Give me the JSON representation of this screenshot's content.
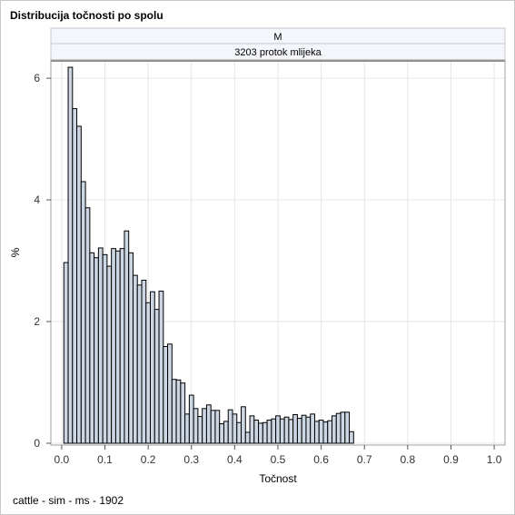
{
  "title": "Distribucija točnosti po spolu",
  "footnote": "cattle - sim - ms - 1902",
  "chart_data": {
    "type": "bar",
    "title": "Distribucija točnosti po spolu",
    "panel_strips": [
      "M",
      "3203 protok mlijeka"
    ],
    "xlabel": "Točnost",
    "ylabel": "%",
    "xlim": [
      -0.025,
      1.025
    ],
    "ylim": [
      0,
      6.3
    ],
    "x_ticks": [
      "0.0",
      "0.1",
      "0.2",
      "0.3",
      "0.4",
      "0.5",
      "0.6",
      "0.7",
      "0.8",
      "0.9",
      "1.0"
    ],
    "y_ticks": [
      "0",
      "2",
      "4",
      "6"
    ],
    "grid": true,
    "bar_fill": "#cdd6e3",
    "bar_stroke": "#000000",
    "bin_width": 0.01,
    "x": [
      0.0,
      0.01,
      0.02,
      0.03,
      0.04,
      0.05,
      0.06,
      0.07,
      0.08,
      0.09,
      0.1,
      0.11,
      0.12,
      0.13,
      0.14,
      0.15,
      0.16,
      0.17,
      0.18,
      0.19,
      0.2,
      0.21,
      0.22,
      0.23,
      0.24,
      0.25,
      0.26,
      0.27,
      0.28,
      0.29,
      0.3,
      0.31,
      0.32,
      0.33,
      0.34,
      0.35,
      0.36,
      0.37,
      0.38,
      0.39,
      0.4,
      0.41,
      0.42,
      0.43,
      0.44,
      0.45,
      0.46,
      0.47,
      0.48,
      0.49,
      0.5,
      0.51,
      0.52,
      0.53,
      0.54,
      0.55,
      0.56,
      0.57,
      0.58,
      0.59,
      0.6,
      0.61,
      0.62,
      0.63,
      0.64,
      0.65,
      0.66,
      0.67,
      0.68,
      0.69,
      0.7,
      0.71,
      0.72,
      0.73,
      0.74,
      0.75,
      0.76,
      0.77,
      0.78,
      0.79,
      0.8,
      0.81,
      0.82,
      0.83,
      0.84,
      0.85,
      0.86,
      0.87,
      0.88,
      0.89,
      0.9,
      0.91,
      0.92,
      0.93,
      0.94,
      0.95,
      0.96,
      0.97,
      0.98,
      0.99,
      1.0
    ],
    "values": [
      0.0,
      2.97,
      6.18,
      5.5,
      5.21,
      4.3,
      3.87,
      3.13,
      3.05,
      3.21,
      3.1,
      2.91,
      3.2,
      3.16,
      3.2,
      3.49,
      3.13,
      2.76,
      2.6,
      2.68,
      2.31,
      2.49,
      2.2,
      2.5,
      1.59,
      1.63,
      1.05,
      1.04,
      0.99,
      0.48,
      0.79,
      0.57,
      0.44,
      0.57,
      0.63,
      0.54,
      0.54,
      0.32,
      0.36,
      0.55,
      0.48,
      0.34,
      0.6,
      0.18,
      0.45,
      0.38,
      0.33,
      0.34,
      0.38,
      0.4,
      0.45,
      0.4,
      0.43,
      0.39,
      0.47,
      0.41,
      0.46,
      0.43,
      0.48,
      0.36,
      0.38,
      0.35,
      0.37,
      0.45,
      0.49,
      0.51,
      0.51,
      0.19,
      0.0,
      0.0,
      0.0,
      0.0,
      0.0,
      0.0,
      0.0,
      0.0,
      0.0,
      0.0,
      0.0,
      0.0,
      0.0,
      0.0,
      0.0,
      0.0,
      0.0,
      0.0,
      0.0,
      0.0,
      0.0,
      0.0,
      0.0,
      0.0,
      0.0,
      0.0,
      0.0,
      0.0,
      0.0,
      0.0,
      0.0,
      0.0,
      0.0
    ]
  }
}
